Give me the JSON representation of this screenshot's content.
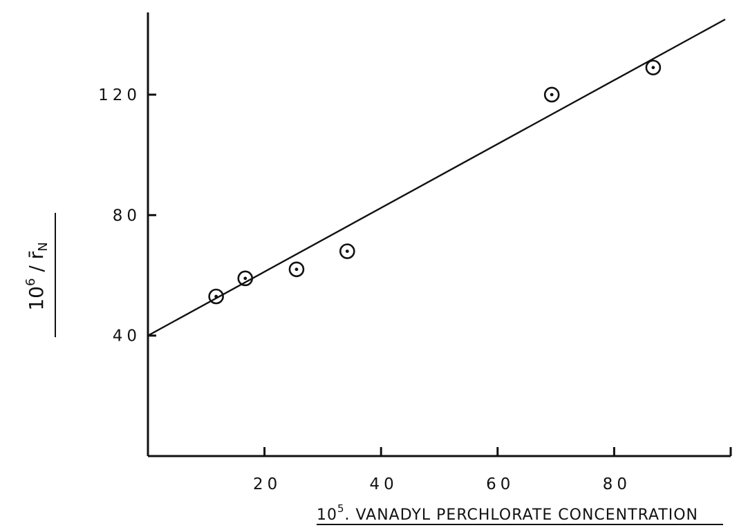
{
  "chart_data": {
    "type": "scatter",
    "title": "",
    "xlabel_prefix": "10",
    "xlabel_exp": "5",
    "xlabel_rest": ". VANADYL PERCHLORATE CONCENTRATION",
    "ylabel_prefix": "10",
    "ylabel_exp": "6",
    "ylabel_sep": " / ",
    "ylabel_sym": "r̄",
    "ylabel_sub": "N",
    "xlim": [
      0,
      100
    ],
    "ylim": [
      0,
      145
    ],
    "x_ticks": [
      20,
      40,
      60,
      80,
      100
    ],
    "x_tick_labels": [
      "20",
      "40",
      "60",
      "80",
      ""
    ],
    "y_ticks": [
      40,
      80,
      120
    ],
    "y_tick_labels": [
      "40",
      "80",
      "120"
    ],
    "points": [
      {
        "x": 11.7,
        "y": 53
      },
      {
        "x": 16.7,
        "y": 59
      },
      {
        "x": 25.5,
        "y": 62
      },
      {
        "x": 34.2,
        "y": 68
      },
      {
        "x": 69.3,
        "y": 120
      },
      {
        "x": 86.7,
        "y": 129
      }
    ],
    "fit_line": {
      "intercept": 40,
      "slope": 1.06
    },
    "grid": false,
    "legend": "none"
  }
}
